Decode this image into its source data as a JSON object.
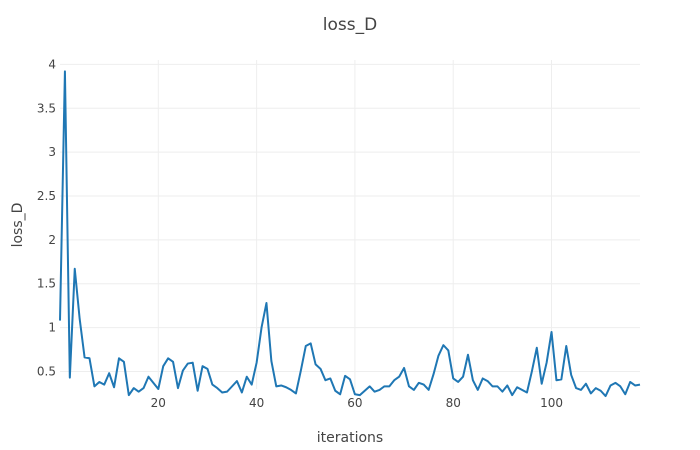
{
  "chart_data": {
    "type": "line",
    "title": "loss_D",
    "xlabel": "iterations",
    "ylabel": "loss_D",
    "xlim": [
      0,
      118
    ],
    "ylim": [
      0.3,
      4.05
    ],
    "x_ticks": [
      20,
      40,
      60,
      80,
      100
    ],
    "x_tick_labels": [
      "20",
      "40",
      "60",
      "80",
      "100"
    ],
    "y_ticks": [
      0.5,
      1,
      1.5,
      2,
      2.5,
      3,
      3.5,
      4
    ],
    "y_tick_labels": [
      "0.5",
      "1",
      "1.5",
      "2",
      "2.5",
      "3",
      "3.5",
      "4"
    ],
    "grid": true,
    "legend": "none",
    "line_color": "#1f77b4",
    "series": [
      {
        "x": [
          0,
          1,
          2,
          3,
          4,
          5,
          6,
          7,
          8,
          9,
          10,
          11,
          12,
          13,
          14,
          15,
          16,
          17,
          18,
          19,
          20,
          21,
          22,
          23,
          24,
          25,
          26,
          27,
          28,
          29,
          30,
          31,
          32,
          33,
          34,
          35,
          36,
          37,
          38,
          39,
          40,
          41,
          42,
          43,
          44,
          45,
          46,
          47,
          48,
          49,
          50,
          51,
          52,
          53,
          54,
          55,
          56,
          57,
          58,
          59,
          60,
          61,
          62,
          63,
          64,
          65,
          66,
          67,
          68,
          69,
          70,
          71,
          72,
          73,
          74,
          75,
          76,
          77,
          78,
          79,
          80,
          81,
          82,
          83,
          84,
          85,
          86,
          87,
          88,
          89,
          90,
          91,
          92,
          93,
          94,
          95,
          96,
          97,
          98,
          99,
          100,
          101,
          102,
          103,
          104,
          105,
          106,
          107,
          108,
          109,
          110,
          111,
          112,
          113,
          114,
          115,
          116,
          117,
          118
        ],
        "values": [
          1.08,
          3.92,
          0.43,
          1.67,
          1.1,
          0.66,
          0.65,
          0.33,
          0.38,
          0.35,
          0.48,
          0.32,
          0.65,
          0.61,
          0.23,
          0.31,
          0.27,
          0.31,
          0.44,
          0.37,
          0.3,
          0.56,
          0.65,
          0.61,
          0.31,
          0.51,
          0.59,
          0.6,
          0.28,
          0.56,
          0.53,
          0.35,
          0.31,
          0.26,
          0.27,
          0.33,
          0.39,
          0.26,
          0.44,
          0.35,
          0.6,
          1.0,
          1.28,
          0.62,
          0.33,
          0.34,
          0.32,
          0.29,
          0.25,
          0.51,
          0.79,
          0.82,
          0.58,
          0.53,
          0.4,
          0.42,
          0.28,
          0.24,
          0.45,
          0.41,
          0.24,
          0.23,
          0.28,
          0.33,
          0.27,
          0.29,
          0.33,
          0.33,
          0.4,
          0.44,
          0.54,
          0.33,
          0.29,
          0.37,
          0.35,
          0.29,
          0.47,
          0.68,
          0.8,
          0.74,
          0.42,
          0.38,
          0.44,
          0.69,
          0.4,
          0.29,
          0.42,
          0.39,
          0.33,
          0.33,
          0.27,
          0.34,
          0.23,
          0.32,
          0.29,
          0.26,
          0.5,
          0.77,
          0.36,
          0.6,
          0.95,
          0.4,
          0.41,
          0.79,
          0.46,
          0.31,
          0.29,
          0.36,
          0.25,
          0.31,
          0.28,
          0.22,
          0.34,
          0.37,
          0.33,
          0.24,
          0.38,
          0.34,
          0.35
        ]
      }
    ]
  }
}
